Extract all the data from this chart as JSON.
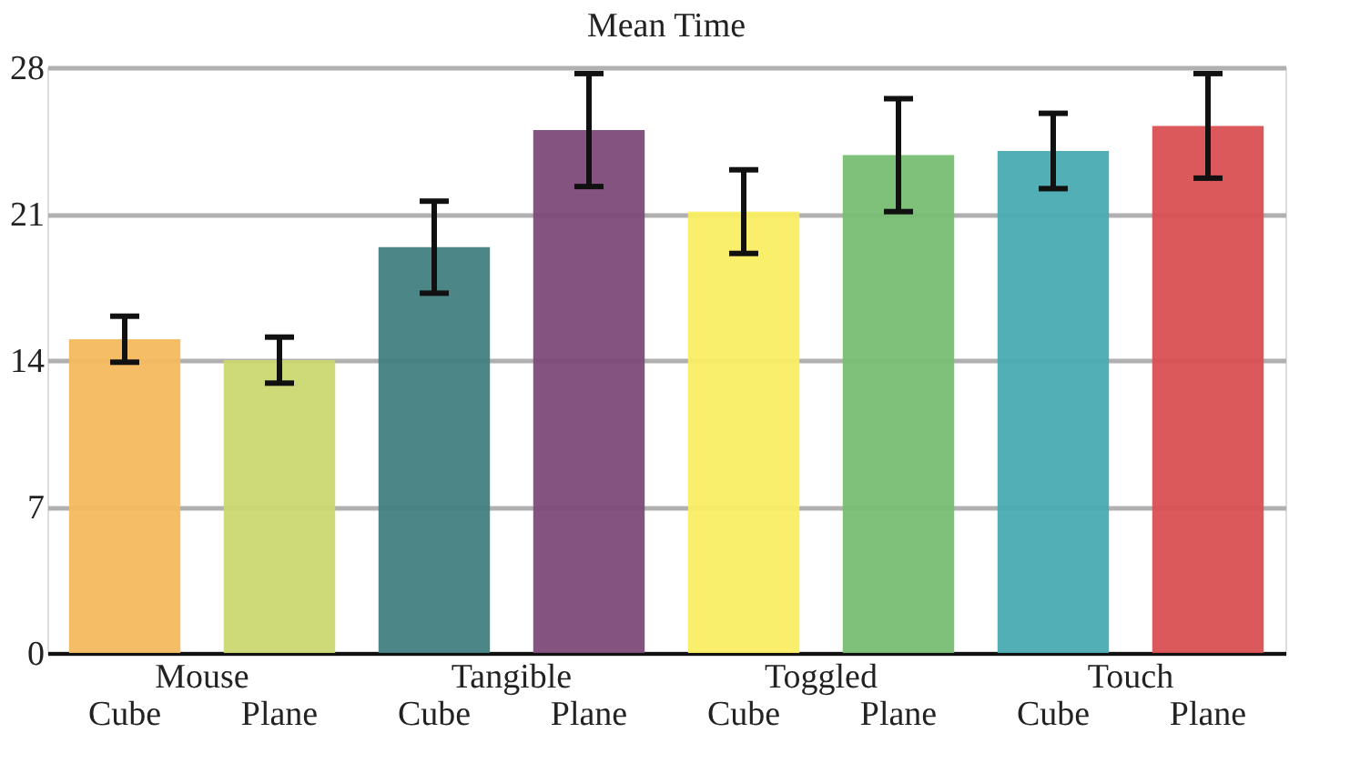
{
  "chart_data": {
    "type": "bar",
    "title": "Mean Time",
    "categories": [
      "Cube",
      "Plane",
      "Cube",
      "Plane",
      "Cube",
      "Plane",
      "Cube",
      "Plane"
    ],
    "annotations": [
      "Mouse",
      "Tangible",
      "Toggled",
      "Touch"
    ],
    "values": [
      15.0,
      14.0,
      19.4,
      25.0,
      21.1,
      23.8,
      24.0,
      25.2
    ],
    "errors": [
      1.1,
      1.1,
      2.2,
      2.7,
      2.0,
      2.7,
      1.8,
      2.5
    ],
    "colors": [
      "#f5b95f",
      "#cbd870",
      "#43807f",
      "#7e4a78",
      "#f9ee62",
      "#78bd73",
      "#4aabb2",
      "#d94f52"
    ],
    "ylim": [
      0,
      28
    ],
    "yticks": [
      0,
      7,
      14,
      21,
      28
    ],
    "grid": "y",
    "legend": false
  }
}
